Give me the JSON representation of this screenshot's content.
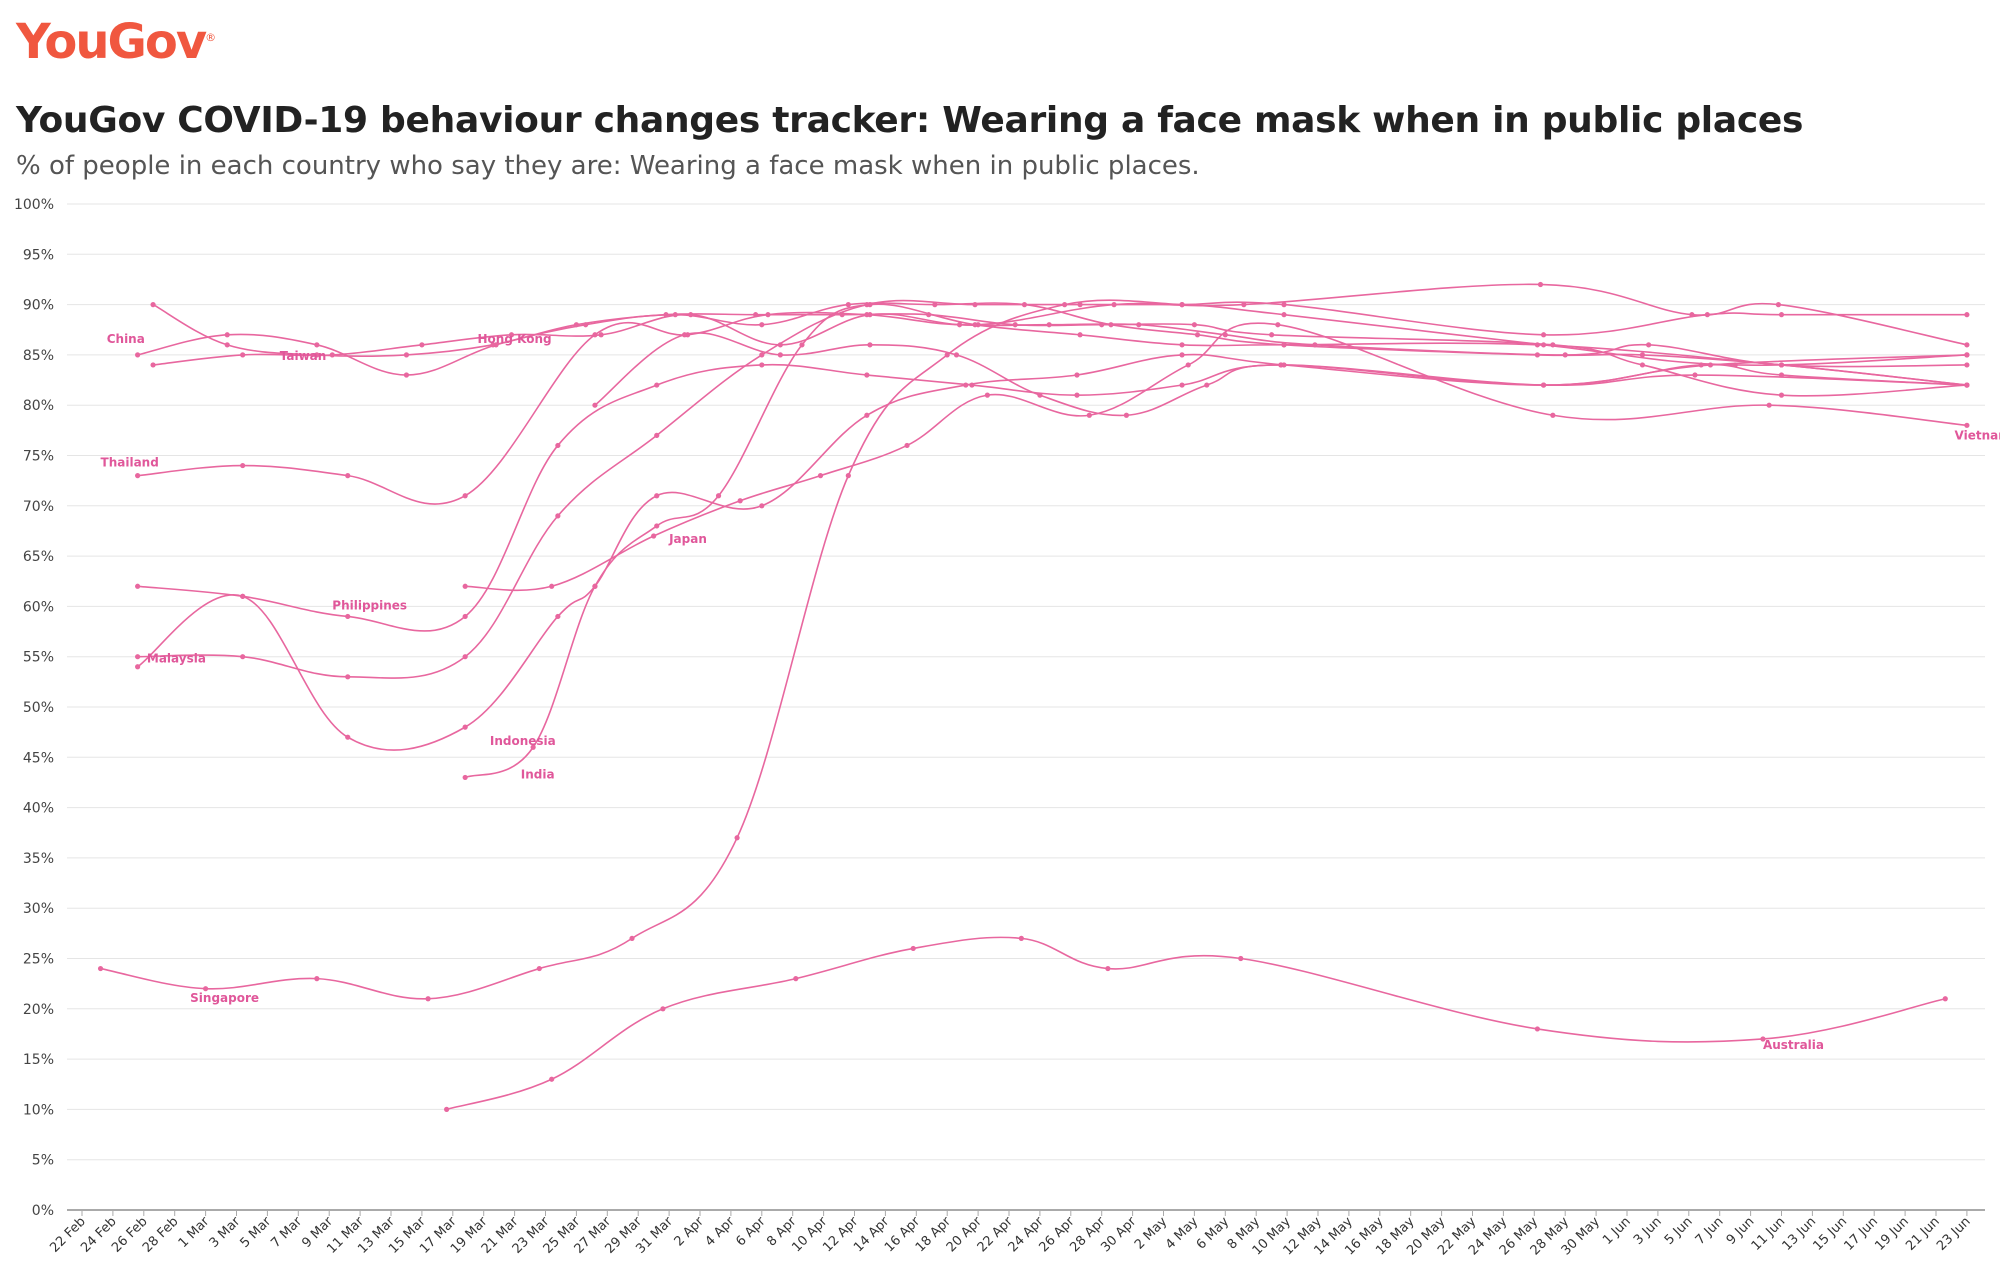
{
  "brand": {
    "logo_text": "YouGov",
    "logo_mark": "®",
    "color": "#f0573f"
  },
  "header": {
    "title": "YouGov COVID-19 behaviour changes tracker: Wearing a face mask when in public places",
    "subtitle": "% of people in each country who say they are: Wearing a face mask when in public places."
  },
  "colors": {
    "series": "#e8679f",
    "label": "#e0579a",
    "grid": "#e5e5e5",
    "axis": "#aaaaaa"
  },
  "chart_data": {
    "type": "line",
    "ylim": [
      0,
      100
    ],
    "y_ticks": [
      "0%",
      "5%",
      "10%",
      "15%",
      "20%",
      "25%",
      "30%",
      "35%",
      "40%",
      "45%",
      "50%",
      "55%",
      "60%",
      "65%",
      "70%",
      "75%",
      "80%",
      "85%",
      "90%",
      "95%",
      "100%"
    ],
    "x_categories": [
      "22 Feb",
      "24 Feb",
      "26 Feb",
      "28 Feb",
      "1 Mar",
      "3 Mar",
      "5 Mar",
      "7 Mar",
      "9 Mar",
      "11 Mar",
      "13 Mar",
      "15 Mar",
      "17 Mar",
      "19 Mar",
      "21 Mar",
      "23 Mar",
      "25 Mar",
      "27 Mar",
      "29 Mar",
      "31 Mar",
      "2 Apr",
      "4 Apr",
      "6 Apr",
      "8 Apr",
      "10 Apr",
      "12 Apr",
      "14 Apr",
      "16 Apr",
      "18 Apr",
      "20 Apr",
      "22 Apr",
      "24 Apr",
      "26 Apr",
      "28 Apr",
      "30 Apr",
      "2 May",
      "4 May",
      "6 May",
      "8 May",
      "10 May",
      "12 May",
      "14 May",
      "16 May",
      "18 May",
      "20 May",
      "22 May",
      "24 May",
      "26 May",
      "28 May",
      "30 May",
      "1 Jun",
      "3 Jun",
      "5 Jun",
      "7 Jun",
      "9 Jun",
      "11 Jun",
      "13 Jun",
      "15 Jun",
      "17 Jun",
      "19 Jun",
      "21 Jun",
      "23 Jun"
    ],
    "grid": true,
    "series": [
      {
        "name": "China",
        "label_pos": [
          0.8,
          86.2
        ],
        "points": [
          [
            1.8,
            85
          ],
          [
            4.7,
            87
          ],
          [
            7.6,
            86
          ],
          [
            10.5,
            83
          ],
          [
            13.4,
            86
          ],
          [
            16.3,
            88
          ],
          [
            19.2,
            89
          ],
          [
            22,
            88
          ],
          [
            24.8,
            90
          ],
          [
            27.6,
            90
          ],
          [
            30.5,
            90
          ],
          [
            33.3,
            88
          ],
          [
            36.1,
            87
          ],
          [
            38.9,
            86
          ],
          [
            47.1,
            85
          ],
          [
            50.5,
            85
          ],
          [
            55,
            84
          ],
          [
            61,
            82
          ]
        ]
      },
      {
        "name": "Taiwan",
        "label_pos": [
          6.4,
          84.5
        ],
        "points": [
          [
            2.3,
            84
          ],
          [
            5.2,
            85
          ],
          [
            8.1,
            85
          ],
          [
            11,
            86
          ],
          [
            13.9,
            87
          ],
          [
            16.8,
            87
          ],
          [
            19.7,
            89
          ],
          [
            22.6,
            86
          ],
          [
            25.5,
            89
          ],
          [
            28.4,
            88
          ],
          [
            31.3,
            88
          ],
          [
            34.2,
            88
          ],
          [
            37,
            87
          ],
          [
            39.9,
            86
          ],
          [
            48,
            85
          ],
          [
            50.7,
            86
          ],
          [
            55,
            84
          ],
          [
            61,
            84
          ]
        ]
      },
      {
        "name": "Hong Kong",
        "label_pos": [
          12.8,
          86.2
        ],
        "points": [
          [
            2.3,
            90
          ],
          [
            4.7,
            86
          ],
          [
            7.6,
            85
          ],
          [
            10.5,
            85
          ],
          [
            13.3,
            86
          ],
          [
            16,
            88
          ],
          [
            18.9,
            89
          ],
          [
            21.8,
            89
          ],
          [
            24.6,
            89
          ],
          [
            27.4,
            89
          ],
          [
            30.2,
            88
          ],
          [
            33,
            88
          ],
          [
            36,
            88
          ],
          [
            38.5,
            87
          ],
          [
            47.6,
            86
          ],
          [
            50.5,
            84
          ],
          [
            55,
            81
          ],
          [
            61,
            82
          ]
        ]
      },
      {
        "name": "Thailand",
        "label_pos": [
          0.6,
          73.9
        ],
        "points": [
          [
            1.8,
            73
          ],
          [
            5.2,
            74
          ],
          [
            8.6,
            73
          ],
          [
            12.4,
            71
          ],
          [
            16.6,
            87
          ],
          [
            19.6,
            87
          ],
          [
            22.2,
            89
          ],
          [
            25.4,
            89
          ],
          [
            29,
            88
          ],
          [
            33.4,
            90
          ],
          [
            37.6,
            90
          ],
          [
            47.2,
            92
          ],
          [
            52.1,
            89
          ],
          [
            54.9,
            90
          ],
          [
            61,
            86
          ]
        ]
      },
      {
        "name": "Philippines",
        "label_pos": [
          8.1,
          59.7
        ],
        "points": [
          [
            1.8,
            62
          ],
          [
            5.2,
            61
          ],
          [
            8.6,
            59
          ],
          [
            12.4,
            59
          ],
          [
            15.4,
            76
          ],
          [
            18.6,
            82
          ],
          [
            22,
            84
          ],
          [
            25.4,
            83
          ],
          [
            28.8,
            82
          ],
          [
            32.2,
            81
          ],
          [
            35.6,
            82
          ],
          [
            38.8,
            84
          ],
          [
            47.3,
            82
          ],
          [
            52.2,
            83
          ],
          [
            61,
            82
          ]
        ]
      },
      {
        "name": "Malaysia",
        "label_pos": [
          2.1,
          54.4
        ],
        "points": [
          [
            1.8,
            55
          ],
          [
            5.2,
            55
          ],
          [
            8.6,
            53
          ],
          [
            12.4,
            55
          ],
          [
            15.4,
            69
          ],
          [
            18.6,
            77
          ],
          [
            22,
            85
          ],
          [
            25.4,
            90
          ],
          [
            28.9,
            90
          ],
          [
            32.3,
            90
          ],
          [
            35.6,
            90
          ],
          [
            38.9,
            90
          ],
          [
            47.3,
            87
          ],
          [
            52.6,
            89
          ],
          [
            55,
            89
          ],
          [
            61,
            89
          ]
        ]
      },
      {
        "name": "Indonesia",
        "label_pos": [
          13.2,
          46.2
        ],
        "points": [
          [
            1.8,
            54
          ],
          [
            5.2,
            61
          ],
          [
            8.6,
            47
          ],
          [
            12.4,
            48
          ],
          [
            15.4,
            59
          ],
          [
            16.6,
            62
          ],
          [
            18.6,
            71
          ],
          [
            22,
            70
          ],
          [
            25.4,
            79
          ],
          [
            28.6,
            82
          ],
          [
            32.2,
            83
          ],
          [
            35.6,
            85
          ],
          [
            38.9,
            84
          ],
          [
            47.3,
            82
          ],
          [
            52.7,
            84
          ],
          [
            61,
            85
          ]
        ]
      },
      {
        "name": "India",
        "label_pos": [
          14.2,
          42.9
        ],
        "points": [
          [
            12.4,
            43
          ],
          [
            14.6,
            46
          ],
          [
            16.6,
            62
          ],
          [
            18.6,
            68
          ],
          [
            20.6,
            71
          ],
          [
            23.3,
            86
          ],
          [
            25.5,
            90
          ],
          [
            28.9,
            88
          ],
          [
            32.3,
            87
          ],
          [
            35.6,
            86
          ],
          [
            38.9,
            86
          ],
          [
            47.1,
            86
          ],
          [
            55,
            84
          ],
          [
            61,
            82
          ]
        ]
      },
      {
        "name": "Japan",
        "label_pos": [
          19.0,
          66.3
        ],
        "points": [
          [
            12.4,
            62
          ],
          [
            15.2,
            62
          ],
          [
            18.5,
            67
          ],
          [
            21.3,
            70.5
          ],
          [
            23.9,
            73
          ],
          [
            26.7,
            76
          ],
          [
            29.3,
            81
          ],
          [
            32.6,
            79
          ],
          [
            35.8,
            84
          ],
          [
            38.7,
            88
          ],
          [
            47.6,
            79
          ],
          [
            54.6,
            80
          ],
          [
            61,
            78
          ]
        ]
      },
      {
        "name": "Singapore",
        "label_pos": [
          3.5,
          20.7
        ],
        "points": [
          [
            0.6,
            24
          ],
          [
            4,
            22
          ],
          [
            7.6,
            23
          ],
          [
            11.2,
            21
          ],
          [
            14.8,
            24
          ],
          [
            17.8,
            27
          ],
          [
            21.2,
            37
          ],
          [
            24.8,
            73
          ],
          [
            28,
            85
          ],
          [
            31.8,
            90
          ],
          [
            35.6,
            90
          ],
          [
            38.9,
            89
          ],
          [
            47.3,
            86
          ],
          [
            53.5,
            84
          ],
          [
            61,
            85
          ]
        ]
      },
      {
        "name": "Australia",
        "label_pos": [
          54.4,
          16.0
        ],
        "points": [
          [
            11.8,
            10
          ],
          [
            15.2,
            13
          ],
          [
            18.8,
            20
          ],
          [
            23.1,
            23
          ],
          [
            26.9,
            26
          ],
          [
            30.4,
            27
          ],
          [
            33.2,
            24
          ],
          [
            37.5,
            25
          ],
          [
            47.1,
            18
          ],
          [
            54.4,
            17
          ],
          [
            60.3,
            21
          ]
        ]
      },
      {
        "name": "Vietnam",
        "label_pos": [
          60.6,
          76.6
        ],
        "points": [
          [
            16.6,
            80
          ],
          [
            19.5,
            87
          ],
          [
            22.6,
            85
          ],
          [
            25.5,
            86
          ],
          [
            28.3,
            85
          ],
          [
            31,
            81
          ],
          [
            33.8,
            79
          ],
          [
            36.4,
            82
          ],
          [
            38.8,
            84
          ],
          [
            47.3,
            82
          ],
          [
            52.4,
            84
          ],
          [
            55,
            83
          ],
          [
            61,
            82
          ]
        ]
      }
    ]
  }
}
